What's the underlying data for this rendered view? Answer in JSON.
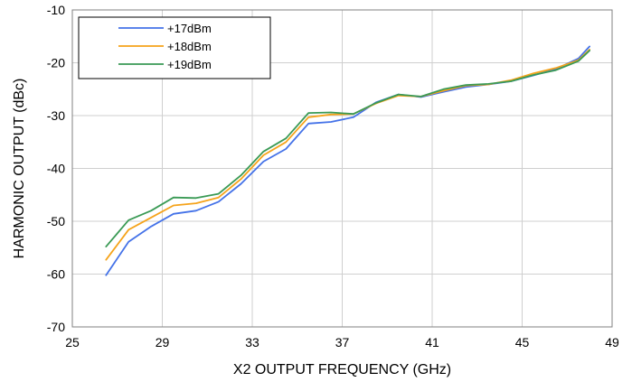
{
  "chart_data": {
    "type": "line",
    "title": "",
    "xlabel": "X2 OUTPUT FREQUENCY (GHz)",
    "ylabel": "HARMONIC OUTPUT (dBc)",
    "xlim": [
      25,
      49
    ],
    "ylim": [
      -70,
      -10
    ],
    "xticks": [
      25,
      29,
      33,
      37,
      41,
      45,
      49
    ],
    "yticks": [
      -10,
      -20,
      -30,
      -40,
      -50,
      -60,
      -70
    ],
    "grid": true,
    "legend_position": "top-left",
    "x": [
      26.5,
      27.5,
      28.5,
      29.5,
      30.5,
      31.5,
      32.5,
      33.5,
      34.5,
      35.5,
      36.5,
      37.5,
      38.5,
      39.5,
      40.5,
      41.5,
      42.5,
      43.5,
      44.5,
      45.5,
      46.5,
      47.5,
      48.0
    ],
    "series": [
      {
        "name": "+17dBm",
        "color": "#4472e8",
        "values": [
          -60.2,
          -53.9,
          -51.0,
          -48.6,
          -48.0,
          -46.3,
          -42.9,
          -38.7,
          -36.3,
          -31.5,
          -31.2,
          -30.3,
          -27.5,
          -26.0,
          -26.5,
          -25.5,
          -24.6,
          -24.1,
          -23.5,
          -22.4,
          -21.2,
          -19.2,
          -16.9
        ]
      },
      {
        "name": "+18dBm",
        "color": "#f5a31a",
        "values": [
          -57.3,
          -51.6,
          -49.3,
          -47.0,
          -46.6,
          -45.5,
          -42.0,
          -37.5,
          -35.0,
          -30.3,
          -29.8,
          -29.7,
          -27.7,
          -26.2,
          -26.4,
          -25.3,
          -24.3,
          -24.1,
          -23.3,
          -22.0,
          -21.0,
          -19.5,
          -17.5
        ]
      },
      {
        "name": "+19dBm",
        "color": "#3a9a55",
        "values": [
          -54.8,
          -49.8,
          -48.0,
          -45.5,
          -45.6,
          -44.8,
          -41.3,
          -36.8,
          -34.3,
          -29.5,
          -29.4,
          -29.7,
          -27.6,
          -26.0,
          -26.4,
          -25.0,
          -24.2,
          -24.0,
          -23.5,
          -22.3,
          -21.4,
          -19.7,
          -17.7
        ]
      }
    ]
  }
}
